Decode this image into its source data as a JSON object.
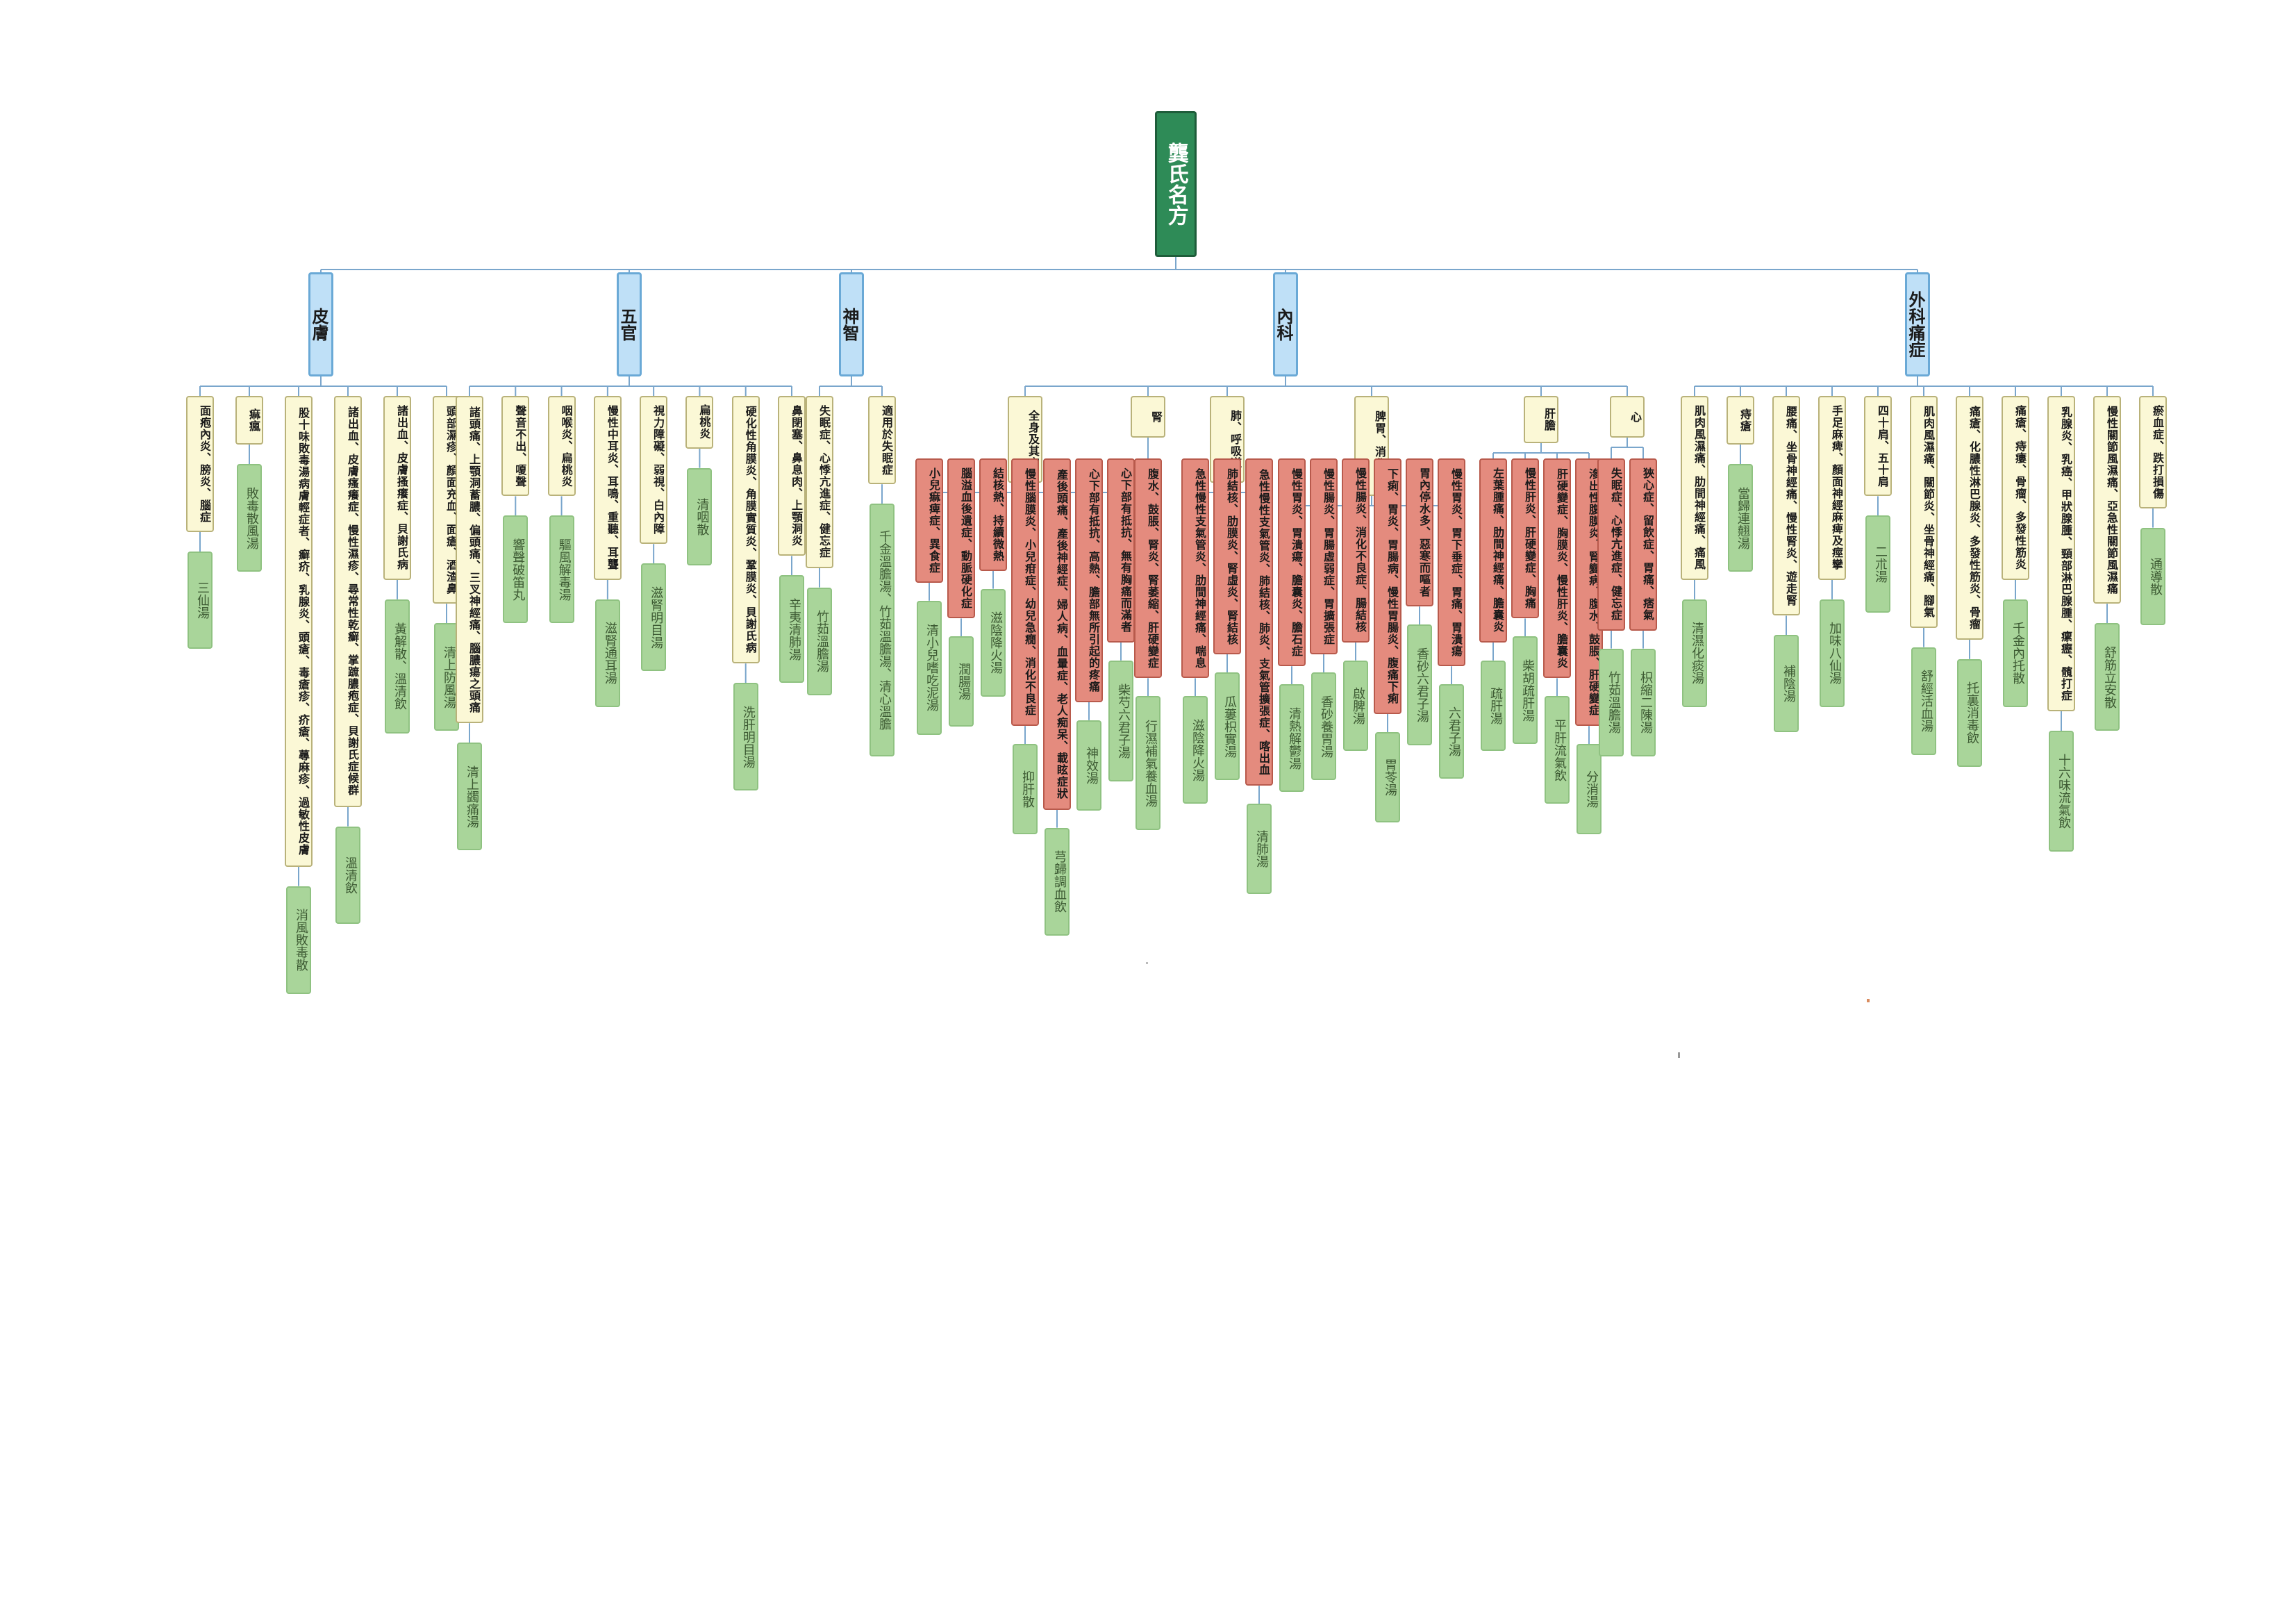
{
  "root": "龔氏名方",
  "categories": [
    {
      "label": "皮膚",
      "groups": [
        {
          "label": "面疱內炎、膀炎、腦症",
          "remedy": "三仙湯"
        },
        {
          "label": "痲瘋",
          "remedy": "敗毒散風湯"
        },
        {
          "label": "股十味敗毒湯病膚輕症者、癬疥、乳腺炎、頭瘡、毒瘡疹、疥瘡、蕁麻疹、過敏性皮膚",
          "remedy": "消風敗毒散"
        },
        {
          "label": "諸出血、皮膚瘙癢症、慢性濕疹、尋常性乾癬、掌蹠膿疱症、貝謝氏症候群",
          "remedy": "溫清飲"
        },
        {
          "label": "諸出血、皮膚搔癢症、貝謝氏病",
          "remedy": "黃解散、溫清飲"
        },
        {
          "label": "頭部濕疹、顏面充血、面瘡、酒渣鼻",
          "remedy": "清上防風湯"
        }
      ]
    },
    {
      "label": "五官",
      "groups": [
        {
          "label": "諸頭痛、上顎洞蓄膿、偏頭痛、三叉神經痛、腦膿瘍之頭痛",
          "remedy": "清上蠲痛湯"
        },
        {
          "label": "聲音不出、嗄聲",
          "remedy": "響聲破笛丸"
        },
        {
          "label": "咽喉炎、扁桃炎",
          "remedy": "驅風解毒湯"
        },
        {
          "label": "慢性中耳炎、耳鳴、重聽、耳聾",
          "remedy": "滋腎通耳湯"
        },
        {
          "label": "視力障礙、弱視、白內障",
          "remedy": "滋腎明目湯"
        },
        {
          "label": "扁桃炎",
          "remedy": "清咽散"
        },
        {
          "label": "硬化性角膜炎、角膜實質炎、鞏膜炎、貝謝氏病",
          "remedy": "洗肝明目湯"
        },
        {
          "label": "鼻閉塞、鼻息肉、上顎洞炎",
          "remedy": "辛夷清肺湯"
        }
      ]
    },
    {
      "label": "神智",
      "groups": [
        {
          "label": "失眠症、心悸亢進症、健忘症",
          "remedy": "竹茹溫膽湯"
        },
        {
          "label": "適用於失眠症",
          "remedy": "千金溫膽湯、竹茹溫膽湯、清心溫膽"
        }
      ]
    },
    {
      "label": "內科",
      "subcats": [
        {
          "label": "全身及其它",
          "items": [
            {
              "label": "小兒痲痺症、異食症",
              "remedy": "清小兒嗜吃泥湯"
            },
            {
              "label": "腦溢血後遺症、動脈硬化症",
              "remedy": "潤腸湯"
            },
            {
              "label": "結核熱、持續微熱",
              "remedy": "滋陰降火湯"
            },
            {
              "label": "慢性腦膜炎、小兒疳症、幼兒急癇、消化不良症",
              "remedy": "抑肝散"
            },
            {
              "label": "產後頭痛、產後神經症、婦人病、血暈症、老人痴呆、載眩症狀",
              "remedy": "芎歸調血飲"
            },
            {
              "label": "心下部有抵抗、高熱、膽部無所引起的疼痛",
              "remedy": "神效湯"
            },
            {
              "label": "心下部有抵抗、無有胸痛而滿者",
              "remedy": "柴芍六君子湯"
            }
          ]
        },
        {
          "label": "腎",
          "items": [
            {
              "label": "腹水、鼓脹、腎炎、腎萎縮、肝硬變症",
              "remedy": "行濕補氣養血湯"
            }
          ]
        },
        {
          "label": "肺、呼吸道",
          "items": [
            {
              "label": "急性慢性支氣管炎、肋間神經痛、喘息",
              "remedy": "滋陰降火湯"
            },
            {
              "label": "肺結核、肋膜炎、腎虛炎、腎結核",
              "remedy": "瓜蔞枳實湯"
            },
            {
              "label": "急性慢性支氣管炎、肺結核、肺炎、支氣管擴張症、喀出血",
              "remedy": "清肺湯"
            }
          ]
        },
        {
          "label": "脾胃、消化道",
          "items": [
            {
              "label": "慢性胃炎、胃潰瘍、膽囊炎、膽石症",
              "remedy": "清熱解鬱湯"
            },
            {
              "label": "慢性腸炎、胃腸虛弱症、胃擴張症",
              "remedy": "香砂養胃湯"
            },
            {
              "label": "慢性腸炎、消化不良症、腸結核",
              "remedy": "啟脾湯"
            },
            {
              "label": "下痢、胃炎、胃腸病、慢性胃腸炎、腹痛下痢",
              "remedy": "胃苓湯"
            },
            {
              "label": "胃內停水多、惡寒而嘔者",
              "remedy": "香砂六君子湯"
            },
            {
              "label": "慢性胃炎、胃下垂症、胃痛、胃潰瘍",
              "remedy": "六君子湯"
            }
          ]
        },
        {
          "label": "肝膽",
          "items": [
            {
              "label": "左葉腫痛、肋間神經痛、膽囊炎",
              "remedy": "疏肝湯"
            },
            {
              "label": "慢性肝炎、肝硬變症、胸痛",
              "remedy": "柴胡疏肝湯"
            },
            {
              "label": "肝硬變症、胸膜炎、慢性肝炎、膽囊炎",
              "remedy": "平肝流氣飲"
            },
            {
              "label": "滲出性腹膜炎、腎變病、腹水、鼓脹、肝硬變症",
              "remedy": "分消湯"
            }
          ]
        },
        {
          "label": "心",
          "items": [
            {
              "label": "失眠症、心悸亢進症、健忘症",
              "remedy": "竹茹溫膽湯"
            },
            {
              "label": "狹心症、留飲症、胃痛、痞氣",
              "remedy": "枳縮二陳湯"
            }
          ]
        }
      ]
    },
    {
      "label": "外科痛症",
      "groups": [
        {
          "label": "肌肉風濕痛、肋間神經痛、痛風",
          "remedy": "清濕化痰湯"
        },
        {
          "label": "痔瘡",
          "remedy": "當歸連翹湯"
        },
        {
          "label": "腰痛、坐骨神經痛、慢性腎炎、遊走腎",
          "remedy": "補陰湯"
        },
        {
          "label": "手足麻痺、顏面神經麻痺及痙攣",
          "remedy": "加味八仙湯"
        },
        {
          "label": "四十肩、五十肩",
          "remedy": "二朮湯"
        },
        {
          "label": "肌肉風濕痛、關節炎、坐骨神經痛、腳氣",
          "remedy": "舒經活血湯"
        },
        {
          "label": "痛瘡、化膿性淋巴腺炎、多發性筋炎、骨瘤",
          "remedy": "托裏消毒飲"
        },
        {
          "label": "痛瘡、痔瘻、骨瘤、多發性筋炎",
          "remedy": "千金內托散"
        },
        {
          "label": "乳腺炎、乳癌、甲狀腺腫、頸部淋巴腺腫、瘰癧、髖打症",
          "remedy": "十六味流氣飲"
        },
        {
          "label": "慢性關節風濕痛、亞急性關節風濕痛",
          "remedy": "舒筋立安散"
        },
        {
          "label": "瘀血症、跌打損傷",
          "remedy": "通導散"
        }
      ]
    }
  ]
}
